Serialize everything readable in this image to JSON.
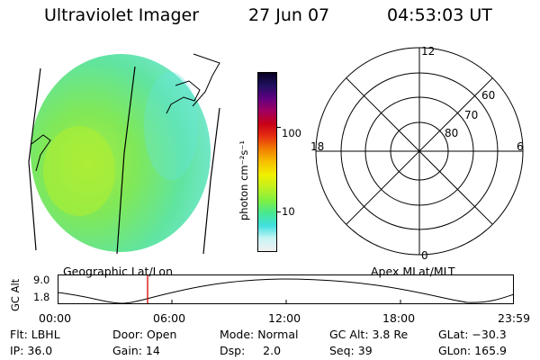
{
  "header": {
    "instrument": "Ultraviolet Imager",
    "date": "27 Jun 07",
    "time": "04:53:03 UT"
  },
  "colorbar": {
    "unit": "photon cm⁻²s⁻¹",
    "tick_labels": [
      "100",
      "10"
    ],
    "tick_values": [
      100,
      10
    ],
    "scale": "log",
    "colors": [
      "#f0f0f0",
      "#c8f4f4",
      "#40e0e0",
      "#48e890",
      "#80f040",
      "#c0f020",
      "#f0f000",
      "#f8c000",
      "#f08000",
      "#e83010",
      "#c80018",
      "#a00060",
      "#600080",
      "#201060",
      "#080020"
    ]
  },
  "polar_grid": {
    "top_label": "12",
    "bottom_label": "0",
    "left_label": "18",
    "right_label": "6",
    "ring_labels": [
      "60",
      "70",
      "80"
    ],
    "ring_values": [
      60,
      70,
      80
    ]
  },
  "orbit_plot": {
    "left_title": "Geographic Lat/Lon",
    "right_title": "Apex MLat/MLT",
    "axis_title": "GC Alt",
    "y_ticks": [
      "9.0",
      "1.8"
    ],
    "x_ticks": [
      "00:00",
      "06:00",
      "12:00",
      "18:00",
      "23:59"
    ],
    "current_time_marker": "04:53",
    "current_marker_color": "#dd0000"
  },
  "status": {
    "row1": {
      "flt": "Flt: LBHL",
      "door": "Door: Open",
      "mode": "Mode: Normal",
      "gc_alt": "GC Alt: 3.8 Re",
      "glat": "GLat: −30.3"
    },
    "row2": {
      "ip": "IP: 36.0",
      "gain": "Gain: 14",
      "dsp": "Dsp:     2.0",
      "seq": "Seq: 39",
      "glon": "GLon: 165.9"
    }
  }
}
